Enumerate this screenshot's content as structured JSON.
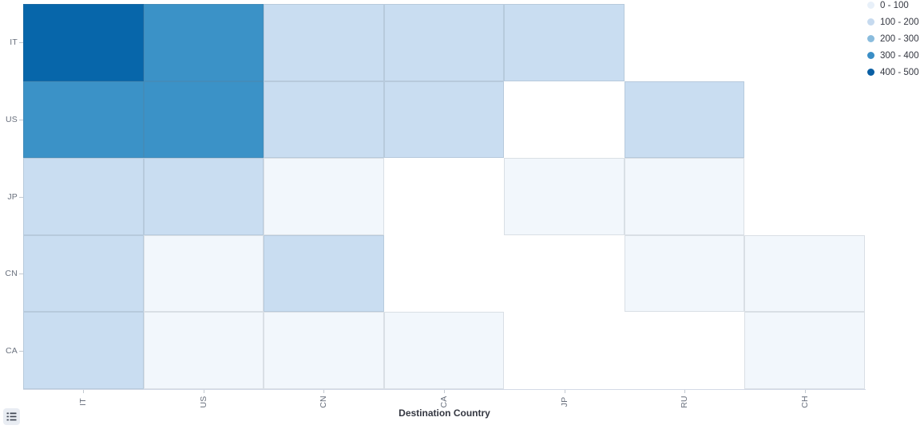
{
  "chart_data": {
    "type": "heatmap",
    "title": "",
    "xlabel": "Destination Country",
    "ylabel": "",
    "x_categories": [
      "IT",
      "US",
      "CN",
      "CA",
      "JP",
      "RU",
      "CH"
    ],
    "y_categories": [
      "IT",
      "US",
      "JP",
      "CN",
      "CA"
    ],
    "values": [
      [
        450,
        350,
        150,
        150,
        150,
        null,
        null
      ],
      [
        350,
        350,
        150,
        150,
        null,
        150,
        null
      ],
      [
        150,
        150,
        50,
        null,
        50,
        50,
        null
      ],
      [
        150,
        50,
        150,
        null,
        null,
        50,
        50
      ],
      [
        150,
        50,
        50,
        50,
        null,
        null,
        50
      ]
    ],
    "value_buckets": [
      {
        "label": "0 - 100",
        "legend_color": "#e8f0f9",
        "cell_color": "#f2f7fc"
      },
      {
        "label": "100 - 200",
        "legend_color": "#c6daef",
        "cell_color": "#c9ddf1"
      },
      {
        "label": "200 - 300",
        "legend_color": "#8abcdd",
        "cell_color": "#8abcdd"
      },
      {
        "label": "300 - 400",
        "legend_color": "#3a8ec6",
        "cell_color": "#3b92c7"
      },
      {
        "label": "400 - 500",
        "legend_color": "#0a5fa4",
        "cell_color": "#0766aa"
      }
    ],
    "legend_position": "top-right",
    "grid": true,
    "x_axis_tick_rotation": -90
  },
  "colors": {
    "tick_label": "#69707d",
    "axis_title": "#343741",
    "axis_line": "#d3dae6",
    "cell_border": "rgba(105,115,125,0.18)",
    "legend_toggle_bg": "#e9edf3",
    "legend_toggle_icon": "#404754"
  },
  "controls": {
    "legend_toggle_icon": "list-icon"
  }
}
